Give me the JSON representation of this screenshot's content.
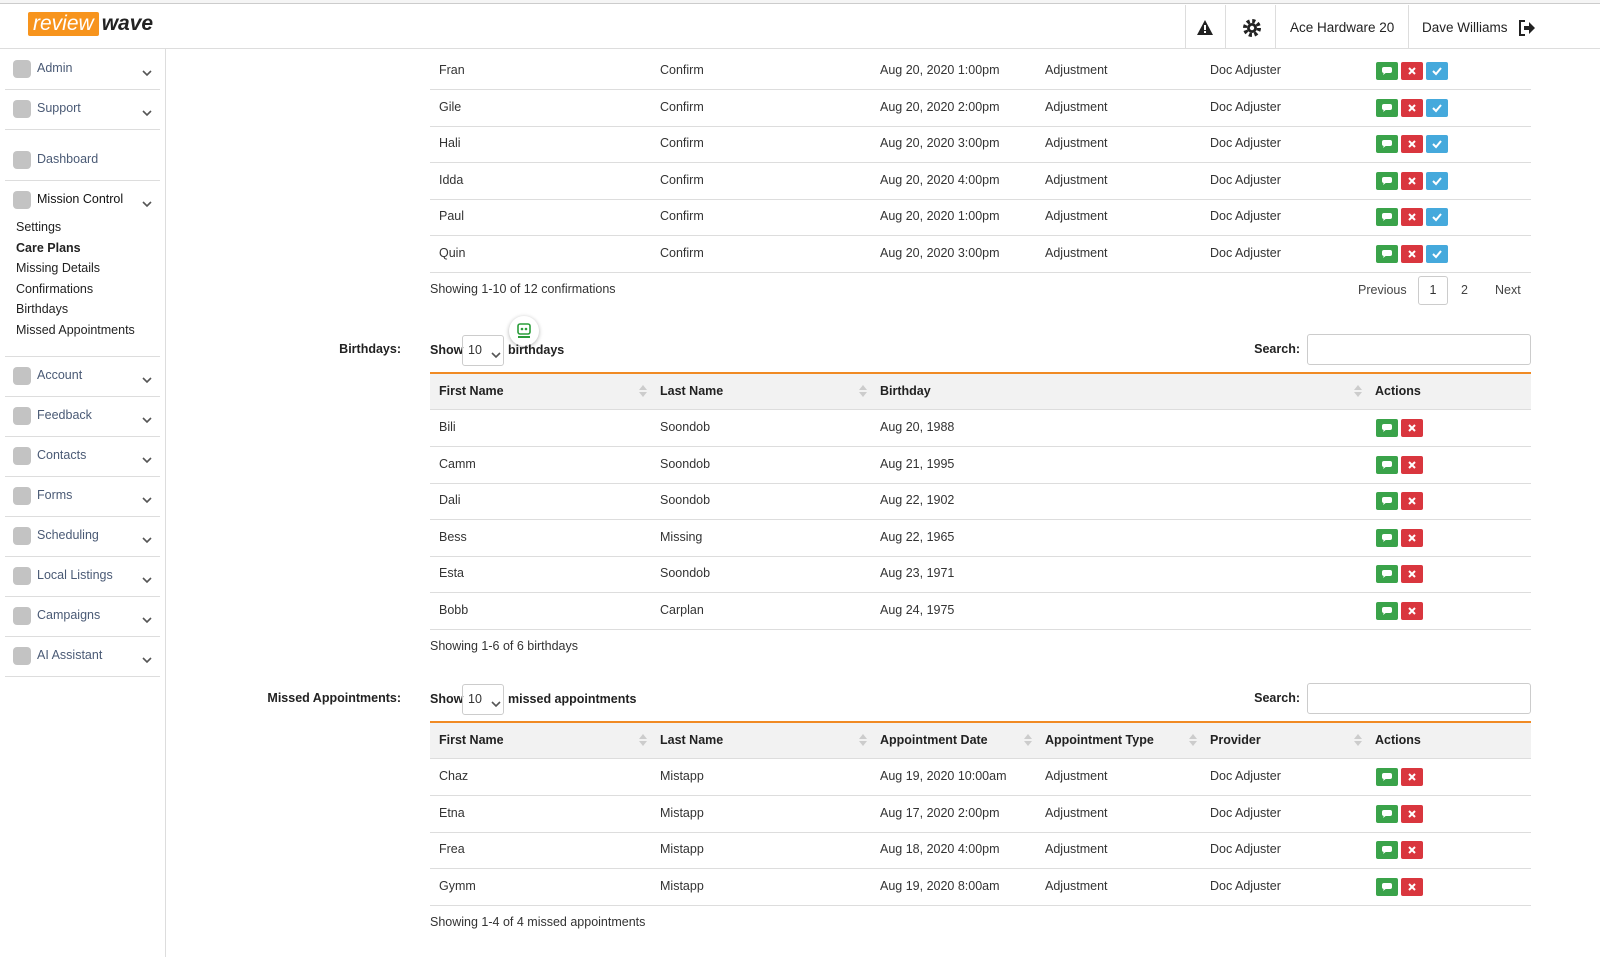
{
  "header": {
    "logo": {
      "part1": "review",
      "part2": "wave"
    },
    "store": "Ace Hardware 20",
    "user": "Dave Williams"
  },
  "sidebar": {
    "items": [
      {
        "label": "Admin"
      },
      {
        "label": "Support"
      },
      {
        "label": "Dashboard"
      },
      {
        "label": "Mission Control",
        "submenu": [
          "Settings",
          "Care Plans",
          "Missing Details",
          "Confirmations",
          "Birthdays",
          "Missed Appointments"
        ]
      },
      {
        "label": "Account"
      },
      {
        "label": "Feedback"
      },
      {
        "label": "Contacts"
      },
      {
        "label": "Forms"
      },
      {
        "label": "Scheduling"
      },
      {
        "label": "Local Listings"
      },
      {
        "label": "Campaigns"
      },
      {
        "label": "AI Assistant"
      }
    ]
  },
  "confirmations": {
    "rows": [
      [
        "Fran",
        "Confirm",
        "Aug 20, 2020 1:00pm",
        "Adjustment",
        "Doc Adjuster"
      ],
      [
        "Gile",
        "Confirm",
        "Aug 20, 2020 2:00pm",
        "Adjustment",
        "Doc Adjuster"
      ],
      [
        "Hali",
        "Confirm",
        "Aug 20, 2020 3:00pm",
        "Adjustment",
        "Doc Adjuster"
      ],
      [
        "Idda",
        "Confirm",
        "Aug 20, 2020 4:00pm",
        "Adjustment",
        "Doc Adjuster"
      ],
      [
        "Paul",
        "Confirm",
        "Aug 20, 2020 1:00pm",
        "Adjustment",
        "Doc Adjuster"
      ],
      [
        "Quin",
        "Confirm",
        "Aug 20, 2020 3:00pm",
        "Adjustment",
        "Doc Adjuster"
      ]
    ],
    "info": "Showing 1-10 of 12 confirmations",
    "pagination": [
      "Previous",
      "1",
      "2",
      "Next"
    ]
  },
  "birthdays": {
    "label": "Birthdays:",
    "show": "Show",
    "page_length": "10",
    "entries": "birthdays",
    "search": "Search:",
    "columns": [
      "First Name",
      "Last Name",
      "Birthday",
      "Actions"
    ],
    "rows": [
      [
        "Bili",
        "Soondob",
        "Aug 20, 1988"
      ],
      [
        "Camm",
        "Soondob",
        "Aug 21, 1995"
      ],
      [
        "Dali",
        "Soondob",
        "Aug 22, 1902"
      ],
      [
        "Bess",
        "Missing",
        "Aug 22, 1965"
      ],
      [
        "Esta",
        "Soondob",
        "Aug 23, 1971"
      ],
      [
        "Bobb",
        "Carplan",
        "Aug 24, 1975"
      ]
    ],
    "info": "Showing 1-6 of 6 birthdays"
  },
  "missed_appointments": {
    "label": "Missed Appointments:",
    "show": "Show",
    "page_length": "10",
    "entries": "missed appointments",
    "search": "Search:",
    "columns": [
      "First Name",
      "Last Name",
      "Appointment Date",
      "Appointment Type",
      "Provider",
      "Actions"
    ],
    "rows": [
      [
        "Chaz",
        "Mistapp",
        "Aug 19, 2020 10:00am",
        "Adjustment",
        "Doc Adjuster"
      ],
      [
        "Etna",
        "Mistapp",
        "Aug 17, 2020 2:00pm",
        "Adjustment",
        "Doc Adjuster"
      ],
      [
        "Frea",
        "Mistapp",
        "Aug 18, 2020 4:00pm",
        "Adjustment",
        "Doc Adjuster"
      ],
      [
        "Gymm",
        "Mistapp",
        "Aug 19, 2020 8:00am",
        "Adjustment",
        "Doc Adjuster"
      ]
    ],
    "info": "Showing 1-4 of 4 missed appointments"
  }
}
